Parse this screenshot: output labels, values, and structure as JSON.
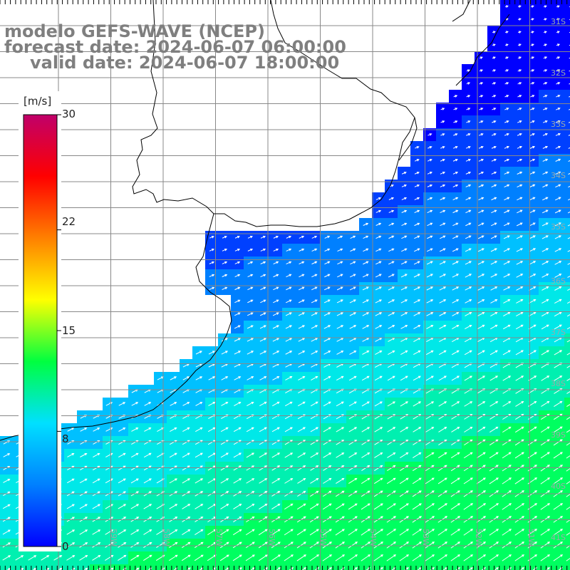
{
  "title": {
    "line1": "modelo GEFS-WAVE (NCEP)",
    "line2": "forecast date: 2024-06-07 06:00:00",
    "line3": "valid date: 2024-06-07 18:00:00"
  },
  "colorbar": {
    "unit": "[m/s]",
    "ticks": [
      "30",
      "22",
      "15",
      "8",
      "0"
    ],
    "tick_values": [
      30,
      22,
      15,
      8,
      0
    ],
    "colors": [
      "#0000ff",
      "#0080ff",
      "#00e0ff",
      "#00ff40",
      "#ffff00",
      "#ff8000",
      "#ff0000",
      "#c0006a"
    ]
  },
  "map": {
    "lat_labels": [
      "31S",
      "32S",
      "33S",
      "34S",
      "35S",
      "36S",
      "37S",
      "38S",
      "39S",
      "40S",
      "41S"
    ],
    "lon_labels": [
      "59W",
      "58W",
      "57W",
      "56W",
      "55W",
      "54W",
      "53W",
      "52W",
      "51W"
    ],
    "land_color": "#ffffff",
    "grid_color": "#888888"
  }
}
